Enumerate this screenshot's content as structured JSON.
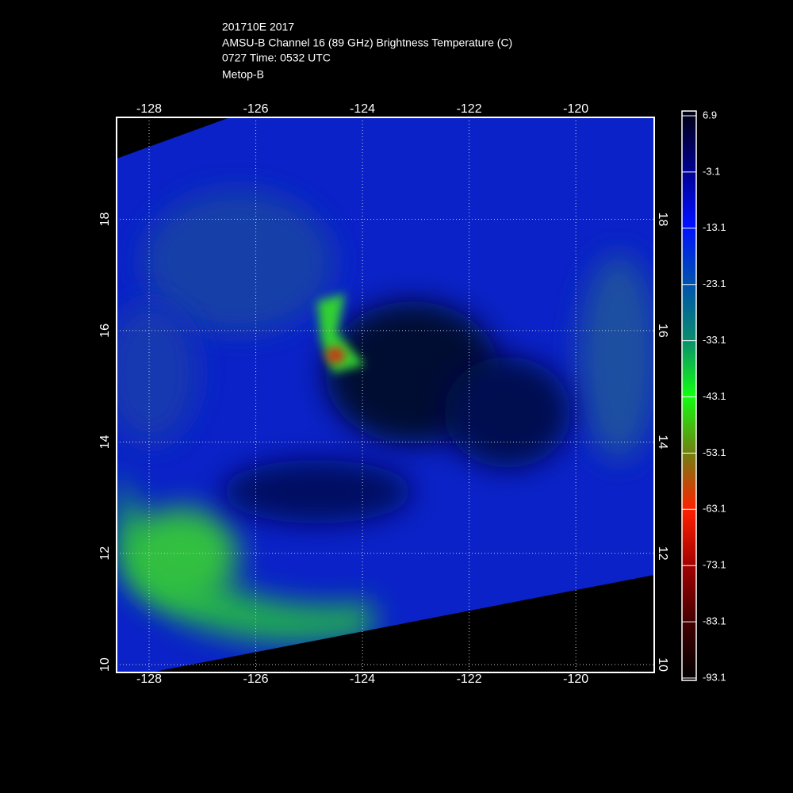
{
  "header": {
    "lines": [
      "201710E 2017",
      "AMSU-B Channel 16 (89 GHz) Brightness Temperature (C)",
      "0727 Time: 0532 UTC",
      "Metop-B"
    ]
  },
  "map": {
    "xlim": [
      -128.61,
      -118.53
    ],
    "ylim": [
      9.86,
      19.83
    ],
    "xticks": [
      -128,
      -126,
      -124,
      -122,
      -120
    ],
    "yticks": [
      10,
      12,
      14,
      16,
      18
    ],
    "grid": true
  },
  "colorbar": {
    "lim": [
      -93.1,
      6.9
    ],
    "ticks": [
      6.9,
      -3.1,
      -13.1,
      -23.1,
      -33.1,
      -43.1,
      -53.1,
      -63.1,
      -73.1,
      -83.1,
      -93.1
    ]
  }
}
